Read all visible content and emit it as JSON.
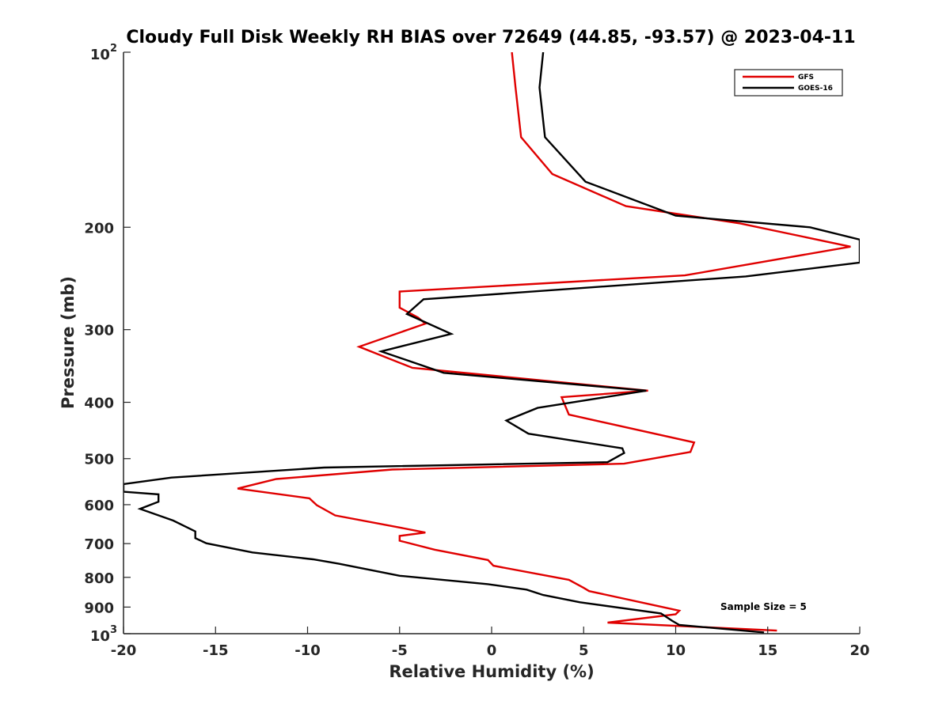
{
  "chart_data": {
    "type": "line",
    "title": "Cloudy Full Disk Weekly RH BIAS over 72649 (44.85, -93.57) @ 2023-04-11",
    "xlabel": "Relative Humidity (%)",
    "ylabel": "Pressure (mb)",
    "xlim": [
      -20,
      20
    ],
    "ylim": [
      100,
      1000
    ],
    "y_scale": "log",
    "y_reversed": true,
    "xticks": [
      "-20",
      "-15",
      "-10",
      "-5",
      "0",
      "5",
      "10",
      "15",
      "20"
    ],
    "yticks_labels": [
      {
        "value": 200,
        "label": "200"
      },
      {
        "value": 300,
        "label": "300"
      },
      {
        "value": 400,
        "label": "400"
      },
      {
        "value": 500,
        "label": "500"
      },
      {
        "value": 600,
        "label": "600"
      },
      {
        "value": 700,
        "label": "700"
      },
      {
        "value": 800,
        "label": "800"
      },
      {
        "value": 900,
        "label": "900"
      }
    ],
    "ytick_top": {
      "value": 100,
      "base": "10",
      "exp": "2"
    },
    "ytick_bottom": {
      "value": 1000,
      "base": "10",
      "exp": "3"
    },
    "legend_position": "top-right",
    "grid": false,
    "annotation": "Sample Size = 5",
    "series": [
      {
        "name": "GFS",
        "color": "#e00000",
        "points": [
          [
            1.1,
            100
          ],
          [
            1.3,
            115
          ],
          [
            1.6,
            140
          ],
          [
            3.3,
            162
          ],
          [
            7.3,
            184
          ],
          [
            13.5,
            197
          ],
          [
            19.5,
            216
          ],
          [
            10.5,
            242
          ],
          [
            -5.0,
            258
          ],
          [
            -5.0,
            275
          ],
          [
            -4.0,
            286
          ],
          [
            -3.6,
            293
          ],
          [
            -7.2,
            321
          ],
          [
            -4.3,
            349
          ],
          [
            8.5,
            382
          ],
          [
            3.8,
            392
          ],
          [
            4.2,
            420
          ],
          [
            11.0,
            469
          ],
          [
            10.8,
            487
          ],
          [
            7.2,
            510
          ],
          [
            -5.4,
            522
          ],
          [
            -11.7,
            542
          ],
          [
            -13.8,
            563
          ],
          [
            -9.9,
            585
          ],
          [
            -9.5,
            601
          ],
          [
            -8.5,
            626
          ],
          [
            -5.2,
            655
          ],
          [
            -3.6,
            670
          ],
          [
            -5.0,
            679
          ],
          [
            -5.0,
            692
          ],
          [
            -3.1,
            717
          ],
          [
            -0.2,
            747
          ],
          [
            0.1,
            764
          ],
          [
            4.2,
            808
          ],
          [
            5.0,
            834
          ],
          [
            5.3,
            845
          ],
          [
            10.2,
            913
          ],
          [
            10.0,
            926
          ],
          [
            6.3,
            957
          ],
          [
            15.5,
            988
          ]
        ]
      },
      {
        "name": "GOES-16",
        "color": "#000000",
        "points": [
          [
            2.8,
            100
          ],
          [
            2.6,
            115
          ],
          [
            2.9,
            140
          ],
          [
            5.1,
            167
          ],
          [
            10.0,
            191
          ],
          [
            17.3,
            200
          ],
          [
            20.0,
            210
          ],
          [
            20.0,
            230
          ],
          [
            13.8,
            243
          ],
          [
            -3.7,
            266
          ],
          [
            -4.6,
            282
          ],
          [
            -2.2,
            305
          ],
          [
            -6.0,
            327
          ],
          [
            -2.6,
            356
          ],
          [
            8.4,
            382
          ],
          [
            2.5,
            409
          ],
          [
            0.8,
            430
          ],
          [
            2.0,
            453
          ],
          [
            7.1,
            480
          ],
          [
            7.2,
            489
          ],
          [
            6.3,
            507
          ],
          [
            -9.1,
            518
          ],
          [
            -17.4,
            539
          ],
          [
            -20.0,
            553
          ],
          [
            -20.0,
            570
          ],
          [
            -18.1,
            576
          ],
          [
            -18.1,
            593
          ],
          [
            -19.1,
            610
          ],
          [
            -17.3,
            639
          ],
          [
            -16.1,
            667
          ],
          [
            -16.1,
            685
          ],
          [
            -15.5,
            699
          ],
          [
            -13.0,
            725
          ],
          [
            -9.7,
            745
          ],
          [
            -8.3,
            758
          ],
          [
            -5.0,
            795
          ],
          [
            -0.2,
            822
          ],
          [
            1.9,
            840
          ],
          [
            2.8,
            858
          ],
          [
            4.8,
            883
          ],
          [
            9.2,
            923
          ],
          [
            9.8,
            950
          ],
          [
            10.2,
            966
          ],
          [
            14.8,
            995
          ]
        ]
      }
    ]
  }
}
